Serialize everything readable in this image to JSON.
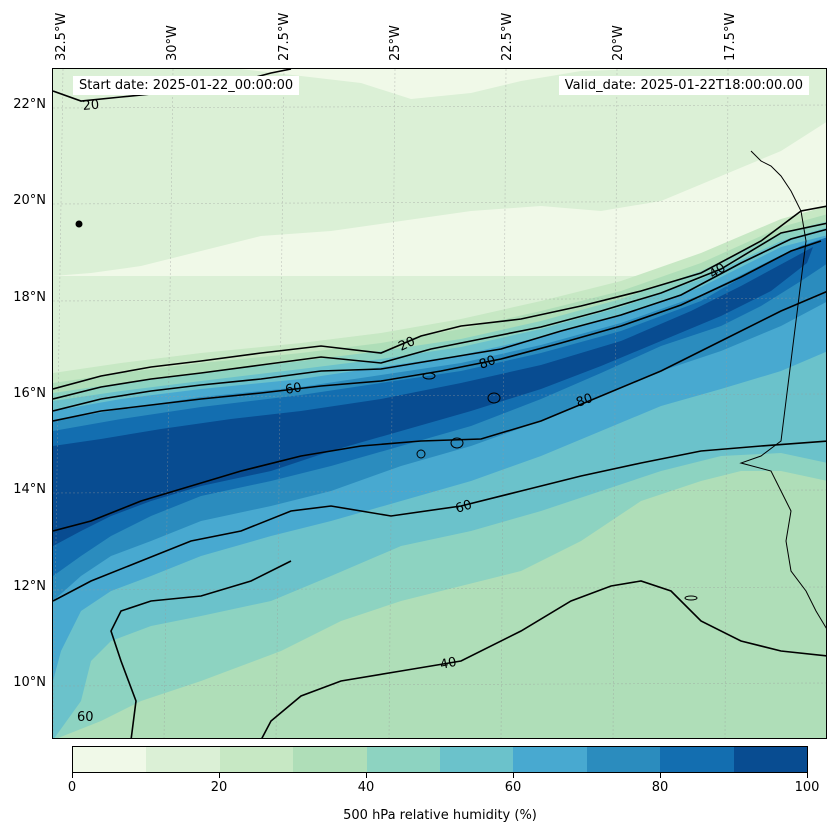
{
  "header": {
    "start_date": "Start date: 2025-01-22_00:00:00",
    "valid_date": "Valid_date: 2025-01-22T18:00:00.00"
  },
  "map": {
    "longitude_labels": [
      "32.5°W",
      "30°W",
      "27.5°W",
      "25°W",
      "22.5°W",
      "20°W",
      "17.5°W"
    ],
    "latitude_labels": [
      "22°N",
      "20°N",
      "18°N",
      "16°N",
      "14°N",
      "12°N",
      "10°N"
    ],
    "contour_labels": [
      "20",
      "20",
      "40",
      "60",
      "80",
      "80",
      "60",
      "40",
      "60"
    ],
    "colors": {
      "level_0_10": "#f0f9e8",
      "level_10_20": "#dbf0d6",
      "level_20_30": "#c7e8c4",
      "level_30_40": "#afdeb8",
      "level_40_50": "#8dd3c1",
      "level_50_60": "#6bc2cb",
      "level_60_70": "#48a9d0",
      "level_70_80": "#2b8cbe",
      "level_80_90": "#136eb0",
      "level_90_100": "#084c91",
      "contour_line": "#000000",
      "coastline": "#000000"
    }
  },
  "colorbar": {
    "title": "500 hPa relative humidity (%)",
    "tick_labels": [
      "0",
      "20",
      "40",
      "60",
      "80",
      "100"
    ],
    "levels": [
      0,
      10,
      20,
      30,
      40,
      50,
      60,
      70,
      80,
      90,
      100
    ]
  }
}
